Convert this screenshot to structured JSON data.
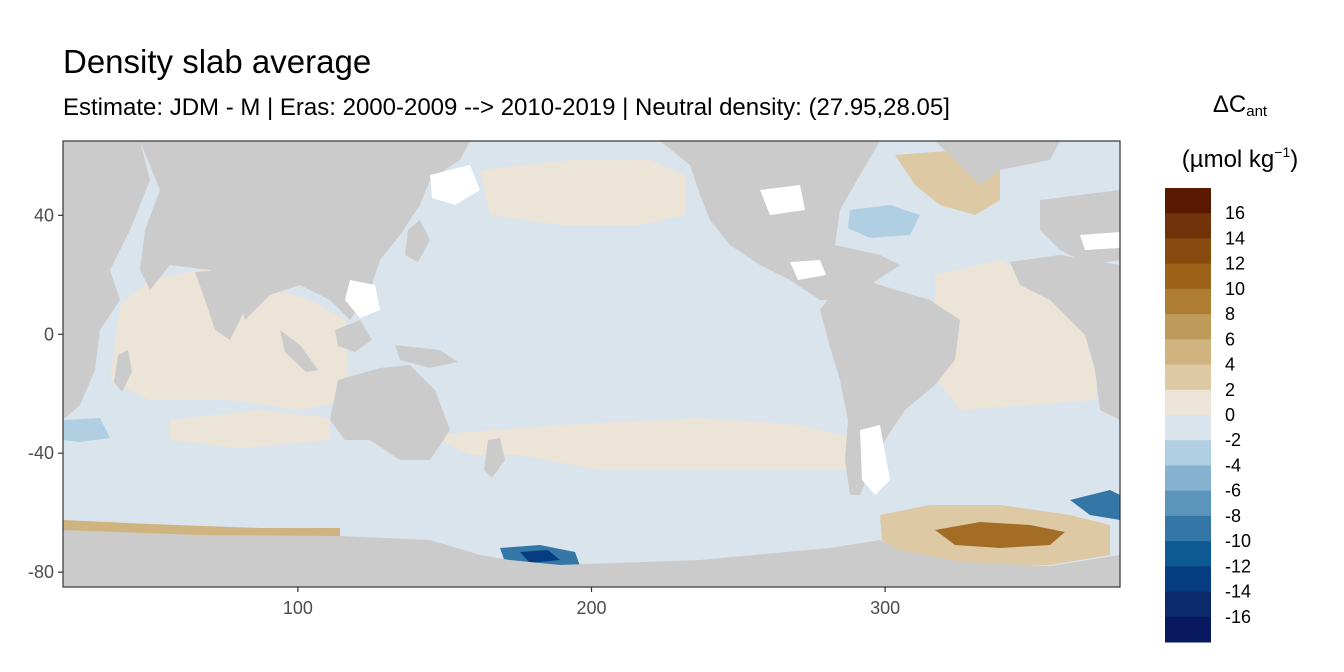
{
  "title": "Density slab average",
  "subtitle": "Estimate: JDM - M | Eras: 2000-2009 --> 2010-2019 | Neutral density: (27.95,28.05]",
  "legend": {
    "symbol": "ΔC",
    "subscript": "ant",
    "unit_open": "(µmol kg",
    "unit_exp": "−1",
    "unit_close": ")"
  },
  "axes": {
    "x_ticks": [
      "100",
      "200",
      "300"
    ],
    "y_ticks": [
      "40",
      "0",
      "-40",
      "-80"
    ],
    "x_tick_values": [
      100,
      200,
      300
    ],
    "y_tick_values": [
      40,
      0,
      -40,
      -80
    ],
    "xlim": [
      20,
      380
    ],
    "ylim": [
      -85,
      65
    ]
  },
  "colorbar": {
    "labels": [
      "16",
      "14",
      "12",
      "10",
      "8",
      "6",
      "4",
      "2",
      "0",
      "-2",
      "-4",
      "-6",
      "-8",
      "-10",
      "-12",
      "-14",
      "-16"
    ],
    "colors": [
      "#5a1a02",
      "#70330a",
      "#874b0f",
      "#9c6318",
      "#ad7d34",
      "#bd9a59",
      "#cfb47f",
      "#dec9a5",
      "#ece4d7",
      "#dae4ec",
      "#b1cfe2",
      "#85b2cf",
      "#5c95bc",
      "#3477a6",
      "#0e5a94",
      "#063d82",
      "#0b2a6d",
      "#081960"
    ]
  },
  "colors": {
    "land": "#cbcbcb",
    "neg_weak": "#dae4ec",
    "pos_weak": "#ece4d7",
    "panel_border": "#333333"
  }
}
